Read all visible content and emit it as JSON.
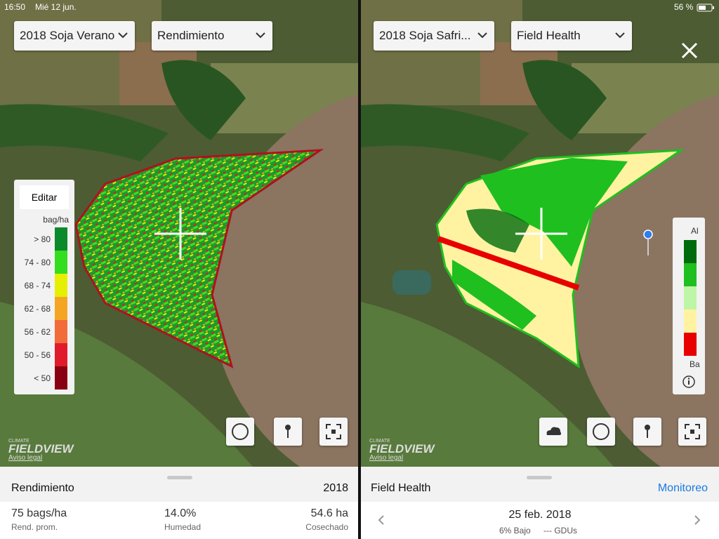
{
  "status": {
    "time": "16:50",
    "date": "Mié 12 jun.",
    "battery": "56 %"
  },
  "left": {
    "season": "2018 Soja Verano",
    "layer": "Rendimiento",
    "legend": {
      "button": "Editar",
      "unit": "bag/ha",
      "items": [
        {
          "label": "> 80",
          "color": "#0b8a2b"
        },
        {
          "label": "74 - 80",
          "color": "#35dd1f"
        },
        {
          "label": "68 - 74",
          "color": "#e6ef00"
        },
        {
          "label": "62 - 68",
          "color": "#f5a524"
        },
        {
          "label": "56 - 62",
          "color": "#f26b3a"
        },
        {
          "label": "50 - 56",
          "color": "#e01b2b"
        },
        {
          "label": "< 50",
          "color": "#8a0013"
        }
      ]
    },
    "brand": {
      "small": "CLIMATE",
      "big": "FIELDVIEW",
      "legal": "Aviso legal"
    },
    "sheet": {
      "title": "Rendimiento",
      "year": "2018",
      "stats": [
        {
          "value": "75 bags/ha",
          "label": "Rend. prom."
        },
        {
          "value": "14.0%",
          "label": "Humedad"
        },
        {
          "value": "54.6 ha",
          "label": "Cosechado"
        }
      ]
    }
  },
  "right": {
    "season": "2018 Soja Safri...",
    "layer": "Field Health",
    "legend": {
      "top": "Al",
      "bottom": "Ba",
      "colors": [
        "#006b0c",
        "#1fbf1f",
        "#bff5a6",
        "#fff3a2",
        "#e80000"
      ]
    },
    "brand": {
      "small": "CLIMATE",
      "big": "FIELDVIEW",
      "legal": "Aviso legal"
    },
    "sheet": {
      "title": "Field Health",
      "action": "Monitoreo",
      "date": "25 feb. 2018",
      "low": "6% Bajo",
      "gdus": "--- GDUs"
    }
  }
}
